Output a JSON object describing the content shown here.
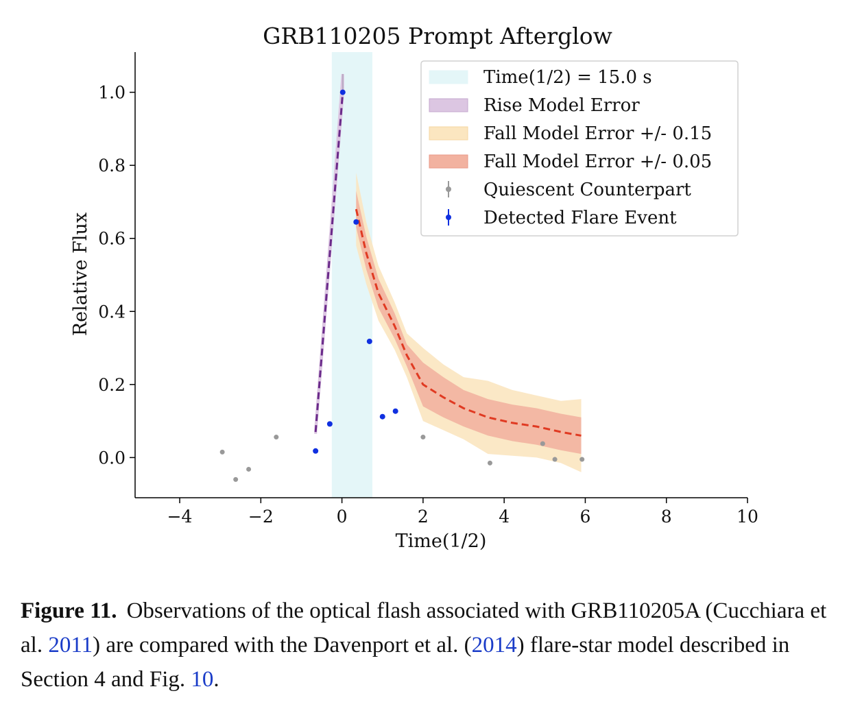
{
  "chart_data": {
    "type": "scatter",
    "title": "GRB110205 Prompt Afterglow",
    "xlabel": "Time(1/2)",
    "ylabel": "Relative Flux",
    "xlim": [
      -5.1,
      10.0
    ],
    "ylim": [
      -0.11,
      1.11
    ],
    "xticks": [
      -4,
      -2,
      0,
      2,
      4,
      6,
      8,
      10
    ],
    "xtick_labels": [
      "−4",
      "−2",
      "0",
      "2",
      "4",
      "6",
      "8",
      "10"
    ],
    "yticks": [
      0.0,
      0.2,
      0.4,
      0.6,
      0.8,
      1.0
    ],
    "ytick_labels": [
      "0.0",
      "0.2",
      "0.4",
      "0.6",
      "0.8",
      "1.0"
    ],
    "grid": false,
    "legend_position": "top-right",
    "highlight_band": {
      "name": "Time(1/2) = 15.0 s",
      "x_range": [
        -0.25,
        0.75
      ],
      "color": "#e4f6f8"
    },
    "rise_model": {
      "name": "Rise Model Error",
      "x": [
        -0.65,
        0.02
      ],
      "y": [
        0.07,
        1.0
      ],
      "upper": [
        0.075,
        1.05
      ],
      "lower": [
        0.065,
        0.995
      ],
      "line_color": "#6a2a8a",
      "band_color": "#dcc6e2"
    },
    "fall_model": {
      "x": [
        0.35,
        0.6,
        0.9,
        1.3,
        1.6,
        2.0,
        2.5,
        3.0,
        3.6,
        4.2,
        4.8,
        5.4,
        5.9
      ],
      "y": [
        0.68,
        0.56,
        0.45,
        0.36,
        0.28,
        0.2,
        0.165,
        0.135,
        0.11,
        0.095,
        0.085,
        0.07,
        0.06
      ],
      "line_color": "#e03a22",
      "bands": [
        {
          "name": "Fall Model Error +/- 0.15",
          "half_width": [
            0.1,
            0.085,
            0.075,
            0.065,
            0.06,
            0.1,
            0.09,
            0.085,
            0.1,
            0.09,
            0.085,
            0.085,
            0.1
          ],
          "color": "#fbe6c0"
        },
        {
          "name": "Fall Model Error +/- 0.05",
          "half_width": [
            0.05,
            0.045,
            0.04,
            0.035,
            0.03,
            0.06,
            0.055,
            0.05,
            0.05,
            0.05,
            0.05,
            0.05,
            0.05
          ],
          "color": "#f2b2a0"
        }
      ]
    },
    "series": [
      {
        "name": "Quiescent Counterpart",
        "color": "#999999",
        "x": [
          -2.95,
          -2.62,
          -2.3,
          -1.62,
          2.0,
          3.65,
          4.95,
          5.25,
          5.92
        ],
        "y": [
          0.015,
          -0.06,
          -0.032,
          0.056,
          0.056,
          -0.015,
          0.038,
          -0.005,
          -0.005
        ]
      },
      {
        "name": "Detected Flare Event",
        "color": "#1030e0",
        "x": [
          -0.65,
          -0.3,
          0.02,
          0.35,
          0.68,
          1.0,
          1.32
        ],
        "y": [
          0.018,
          0.092,
          1.0,
          0.645,
          0.318,
          0.112,
          0.127
        ]
      }
    ]
  },
  "caption": {
    "label": "Figure 11.",
    "text_1": "Observations of the optical flash associated with GRB110205A (Cucchiara et al. ",
    "ref_1": "2011",
    "text_2": ") are compared with the Davenport et al. (",
    "ref_2": "2014",
    "text_3": ") flare-star model described in Section 4 and Fig. ",
    "ref_3": "10",
    "text_4": "."
  }
}
